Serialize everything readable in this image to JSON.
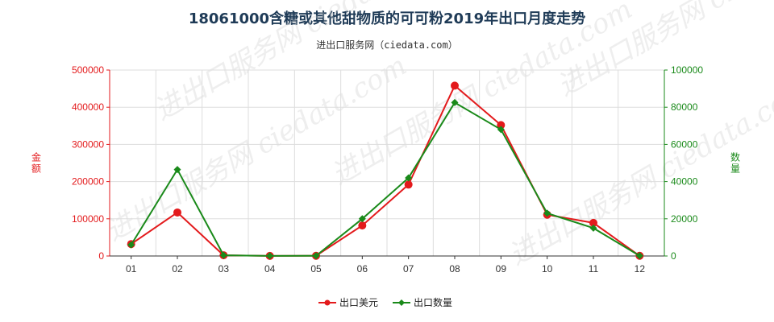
{
  "title": "18061000含糖或其他甜物质的可可粉2019年出口月度走势",
  "subtitle": "进出口服务网（ciedata.com）",
  "watermark": "进出口服务网 ciedata.com",
  "chart_data": {
    "type": "line",
    "categories": [
      "01",
      "02",
      "03",
      "04",
      "05",
      "06",
      "07",
      "08",
      "09",
      "10",
      "11",
      "12"
    ],
    "series": [
      {
        "name": "出口美元",
        "axis": "left",
        "color": "#e31a1c",
        "marker": "circle",
        "values": [
          32000,
          117000,
          2000,
          300,
          500,
          82000,
          192000,
          458000,
          352000,
          111000,
          89000,
          500
        ]
      },
      {
        "name": "出口数量",
        "axis": "right",
        "color": "#1a8a1a",
        "marker": "diamond",
        "values": [
          6000,
          46500,
          400,
          60,
          100,
          20000,
          42000,
          82500,
          68000,
          23000,
          15000,
          100
        ]
      }
    ],
    "y_left": {
      "label": "金额",
      "color": "#e31a1c",
      "range": [
        0,
        500000
      ],
      "ticks": [
        "0",
        "100000",
        "200000",
        "300000",
        "400000",
        "500000"
      ]
    },
    "y_right": {
      "label": "数量",
      "color": "#1a8a1a",
      "range": [
        0,
        100000
      ],
      "ticks": [
        "0",
        "20000",
        "40000",
        "60000",
        "80000",
        "100000"
      ]
    },
    "grid": true,
    "legend": "bottom-center"
  }
}
